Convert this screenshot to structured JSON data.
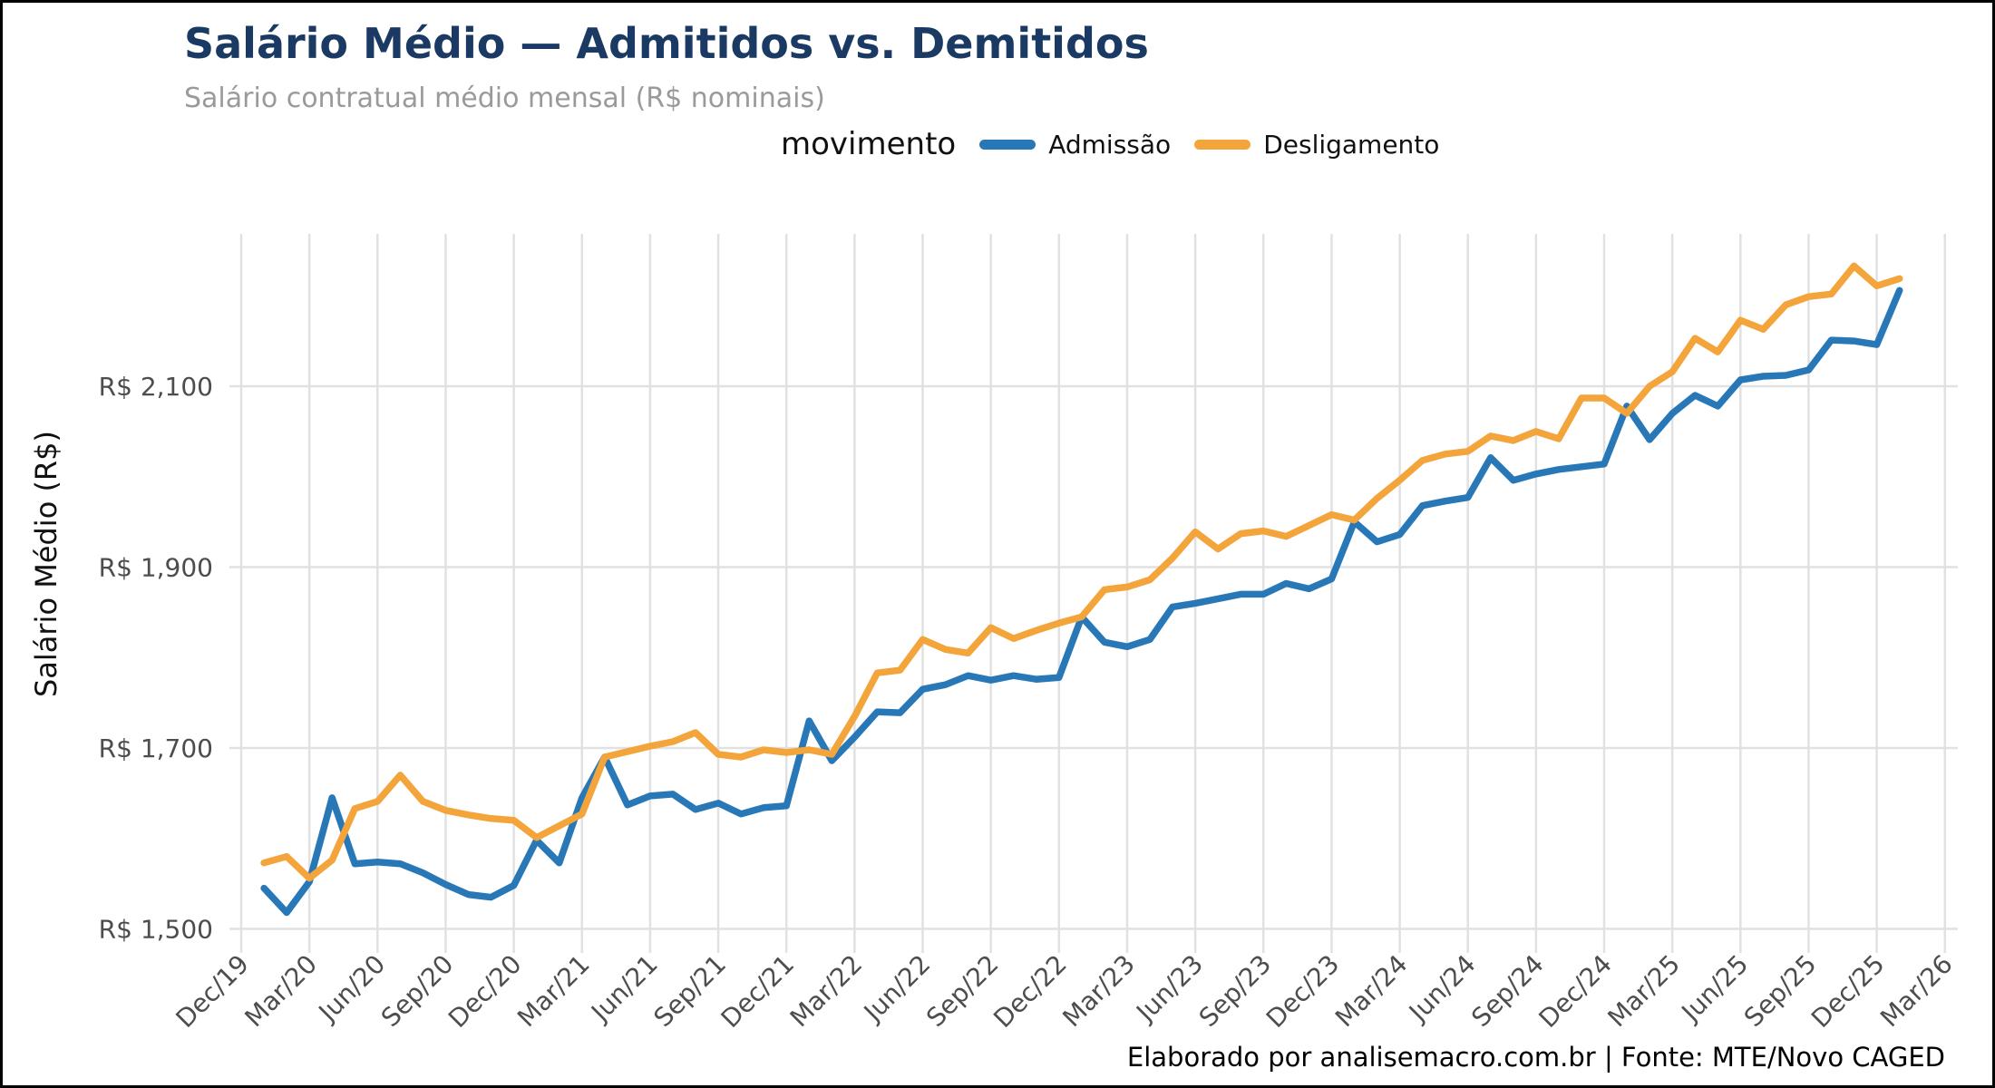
{
  "chart": {
    "title": "Salário Médio — Admitidos vs. Demitidos",
    "subtitle": "Salário contratual médio mensal (R$ nominais)",
    "legend_title": "movimento",
    "footer": "Elaborado por analisemacro.com.br | Fonte: MTE/Novo CAGED",
    "y_axis_title": "Salário Médio (R$)"
  },
  "chart_data": {
    "type": "line",
    "title": "Salário Médio — Admitidos vs. Demitidos",
    "subtitle": "Salário contratual médio mensal (R$ nominais)",
    "xlabel": "",
    "ylabel": "Salário Médio (R$)",
    "legend_title": "movimento",
    "legend_position": "top-center",
    "grid": true,
    "ylim": [
      1460,
      2260
    ],
    "x": [
      "Jan/20",
      "Feb/20",
      "Mar/20",
      "Apr/20",
      "May/20",
      "Jun/20",
      "Jul/20",
      "Aug/20",
      "Sep/20",
      "Oct/20",
      "Nov/20",
      "Dec/20",
      "Jan/21",
      "Feb/21",
      "Mar/21",
      "Apr/21",
      "May/21",
      "Jun/21",
      "Jul/21",
      "Aug/21",
      "Sep/21",
      "Oct/21",
      "Nov/21",
      "Dec/21",
      "Jan/22",
      "Feb/22",
      "Mar/22",
      "Apr/22",
      "May/22",
      "Jun/22",
      "Jul/22",
      "Aug/22",
      "Sep/22",
      "Oct/22",
      "Nov/22",
      "Dec/22",
      "Jan/23",
      "Feb/23",
      "Mar/23",
      "Apr/23",
      "May/23",
      "Jun/23",
      "Jul/23",
      "Aug/23",
      "Sep/23",
      "Oct/23",
      "Nov/23",
      "Dec/23",
      "Jan/24",
      "Feb/24",
      "Mar/24",
      "Apr/24",
      "May/24",
      "Jun/24",
      "Jul/24",
      "Aug/24",
      "Sep/24",
      "Oct/24",
      "Nov/24",
      "Dec/24",
      "Jan/25",
      "Feb/25",
      "Mar/25",
      "Apr/25",
      "May/25",
      "Jun/25",
      "Jul/25",
      "Aug/25",
      "Sep/25",
      "Oct/25",
      "Nov/25",
      "Dec/25",
      "Jan/26"
    ],
    "series": [
      {
        "name": "Admissão",
        "color": "#2878b8",
        "values": [
          1545,
          1518,
          1552,
          1645,
          1572,
          1574,
          1572,
          1562,
          1549,
          1538,
          1535,
          1548,
          1598,
          1573,
          1645,
          1690,
          1637,
          1647,
          1649,
          1632,
          1639,
          1627,
          1634,
          1636,
          1730,
          1686,
          1712,
          1740,
          1739,
          1765,
          1770,
          1780,
          1775,
          1780,
          1776,
          1778,
          1845,
          1817,
          1812,
          1820,
          1856,
          1860,
          1865,
          1870,
          1870,
          1882,
          1876,
          1887,
          1950,
          1928,
          1936,
          1968,
          1973,
          1977,
          2021,
          1996,
          2003,
          2008,
          2011,
          2014,
          2078,
          2041,
          2070,
          2090,
          2078,
          2107,
          2111,
          2112,
          2118,
          2151,
          2150,
          2146,
          2206
        ]
      },
      {
        "name": "Desligamento",
        "color": "#f3a43a",
        "values": [
          1573,
          1580,
          1556,
          1576,
          1633,
          1641,
          1670,
          1641,
          1631,
          1626,
          1622,
          1620,
          1601,
          1614,
          1627,
          1690,
          1696,
          1702,
          1707,
          1717,
          1693,
          1690,
          1698,
          1695,
          1698,
          1693,
          1735,
          1783,
          1786,
          1820,
          1809,
          1805,
          1833,
          1821,
          1830,
          1838,
          1845,
          1875,
          1878,
          1886,
          1910,
          1939,
          1920,
          1937,
          1940,
          1934,
          1946,
          1958,
          1952,
          1976,
          1996,
          2018,
          2025,
          2028,
          2045,
          2040,
          2050,
          2042,
          2087,
          2087,
          2070,
          2100,
          2116,
          2153,
          2138,
          2173,
          2163,
          2190,
          2199,
          2202,
          2233,
          2211,
          2219
        ]
      }
    ],
    "x_tick_labels": [
      "Dec/19",
      "Mar/20",
      "Jun/20",
      "Sep/20",
      "Dec/20",
      "Mar/21",
      "Jun/21",
      "Sep/21",
      "Dec/21",
      "Mar/22",
      "Jun/22",
      "Sep/22",
      "Dec/22",
      "Mar/23",
      "Jun/23",
      "Sep/23",
      "Dec/23",
      "Mar/24",
      "Jun/24",
      "Sep/24",
      "Dec/24",
      "Mar/25",
      "Jun/25",
      "Sep/25",
      "Dec/25",
      "Mar/26"
    ],
    "y_ticks": [
      {
        "value": 1500,
        "label": "R$ 1,500"
      },
      {
        "value": 1700,
        "label": "R$ 1,700"
      },
      {
        "value": 1900,
        "label": "R$ 1,900"
      },
      {
        "value": 2100,
        "label": "R$ 2,100"
      }
    ],
    "colors": {
      "grid": "#e1e1e1",
      "tick_text": "#4d4d4d",
      "title": "#1a3a64",
      "subtitle": "#9a9a9a"
    }
  }
}
